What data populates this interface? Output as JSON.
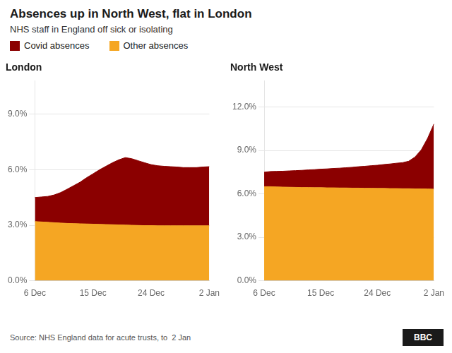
{
  "title": "Absences up in North West, flat in London",
  "subtitle": "NHS staff in England off sick or isolating",
  "legend": "top",
  "annotations": [
    "Source: NHS England data for acute trusts, to  2 Jan",
    "BBC"
  ],
  "chart_data": [
    {
      "type": "area",
      "title": "London",
      "stacked": true,
      "grid": true,
      "categories": [
        "6 Dec",
        null,
        null,
        null,
        null,
        null,
        null,
        null,
        null,
        "15 Dec",
        null,
        null,
        null,
        null,
        null,
        null,
        null,
        null,
        "24 Dec",
        null,
        null,
        null,
        null,
        null,
        null,
        null,
        null,
        "2 Jan"
      ],
      "ylim": [
        0,
        10.8
      ],
      "yticks": [
        {
          "value": 0.0,
          "label": "0.0%"
        },
        {
          "value": 3.0,
          "label": "3.0%"
        },
        {
          "value": 6.0,
          "label": "6.0%"
        },
        {
          "value": 9.0,
          "label": "9.0%"
        }
      ],
      "series": [
        {
          "name": "Other absences",
          "color": "#F5A623",
          "values": [
            3.2,
            3.18,
            3.16,
            3.14,
            3.12,
            3.1,
            3.09,
            3.08,
            3.07,
            3.06,
            3.05,
            3.04,
            3.03,
            3.02,
            3.01,
            3.0,
            2.99,
            2.98,
            2.98,
            2.97,
            2.97,
            2.97,
            2.97,
            2.97,
            2.97,
            2.97,
            2.97,
            2.97
          ]
        },
        {
          "name": "Covid absences",
          "color": "#8B0000",
          "values": [
            1.3,
            1.35,
            1.4,
            1.5,
            1.65,
            1.85,
            2.05,
            2.25,
            2.5,
            2.72,
            2.95,
            3.15,
            3.35,
            3.52,
            3.65,
            3.6,
            3.5,
            3.4,
            3.3,
            3.25,
            3.22,
            3.2,
            3.18,
            3.15,
            3.15,
            3.15,
            3.18,
            3.2
          ]
        }
      ]
    },
    {
      "type": "area",
      "title": "North West",
      "stacked": true,
      "grid": true,
      "categories": [
        "6 Dec",
        null,
        null,
        null,
        null,
        null,
        null,
        null,
        null,
        "15 Dec",
        null,
        null,
        null,
        null,
        null,
        null,
        null,
        null,
        "24 Dec",
        null,
        null,
        null,
        null,
        null,
        null,
        null,
        null,
        "2 Jan"
      ],
      "ylim": [
        0,
        13.8
      ],
      "yticks": [
        {
          "value": 0.0,
          "label": "0.0%"
        },
        {
          "value": 3.0,
          "label": "3.0%"
        },
        {
          "value": 6.0,
          "label": "6.0%"
        },
        {
          "value": 9.0,
          "label": "9.0%"
        },
        {
          "value": 12.0,
          "label": "12.0%"
        }
      ],
      "series": [
        {
          "name": "Other absences",
          "color": "#F5A623",
          "values": [
            6.5,
            6.5,
            6.48,
            6.47,
            6.46,
            6.45,
            6.44,
            6.44,
            6.43,
            6.43,
            6.42,
            6.42,
            6.41,
            6.41,
            6.4,
            6.4,
            6.39,
            6.39,
            6.38,
            6.38,
            6.37,
            6.37,
            6.36,
            6.36,
            6.35,
            6.35,
            6.34,
            6.33
          ]
        },
        {
          "name": "Covid absences",
          "color": "#8B0000",
          "values": [
            1.0,
            1.05,
            1.08,
            1.1,
            1.13,
            1.16,
            1.19,
            1.22,
            1.25,
            1.28,
            1.31,
            1.34,
            1.37,
            1.4,
            1.44,
            1.48,
            1.52,
            1.56,
            1.6,
            1.65,
            1.7,
            1.75,
            1.8,
            1.9,
            2.2,
            2.7,
            3.5,
            4.5
          ]
        }
      ]
    }
  ]
}
